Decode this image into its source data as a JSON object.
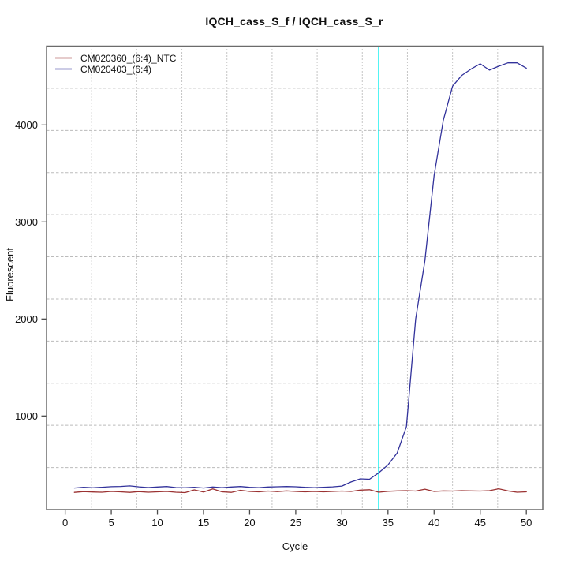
{
  "chart_data": {
    "type": "line",
    "title": "IQCH_cass_S_f / IQCH_cass_S_r",
    "xlabel": "Cycle",
    "ylabel": "Fluorescent",
    "x_range": [
      -2.02,
      51.78
    ],
    "y_range": [
      35,
      4812
    ],
    "xticks": [
      0,
      5,
      10,
      15,
      20,
      25,
      30,
      35,
      40,
      45,
      50
    ],
    "yticks": [
      1000,
      2000,
      3000,
      4000
    ],
    "grid": {
      "nx": 11,
      "ny": 11,
      "vertical_style": "dotted",
      "horizontal_style": "dashed"
    },
    "legend_position": "top-left",
    "threshold_line": {
      "x": 34,
      "color": "#00EEEE"
    },
    "x": [
      1,
      2,
      3,
      4,
      5,
      6,
      7,
      8,
      9,
      10,
      11,
      12,
      13,
      14,
      15,
      16,
      17,
      18,
      19,
      20,
      21,
      22,
      23,
      24,
      25,
      26,
      27,
      28,
      29,
      30,
      31,
      32,
      33,
      34,
      35,
      36,
      37,
      38,
      39,
      40,
      41,
      42,
      43,
      44,
      45,
      46,
      47,
      48,
      49,
      50
    ],
    "series": [
      {
        "name": "CM020360_(6:4)_NTC",
        "color": "#9B3232",
        "values": [
          212,
          220,
          216,
          214,
          222,
          218,
          212,
          220,
          214,
          218,
          222,
          214,
          210,
          238,
          216,
          248,
          218,
          212,
          234,
          222,
          218,
          226,
          220,
          228,
          222,
          218,
          222,
          218,
          222,
          226,
          222,
          236,
          240,
          214,
          224,
          228,
          230,
          226,
          246,
          222,
          228,
          226,
          230,
          228,
          226,
          230,
          250,
          228,
          214,
          218
        ]
      },
      {
        "name": "CM020403_(6:4)",
        "color": "#32329B",
        "values": [
          258,
          265,
          260,
          266,
          272,
          274,
          280,
          270,
          263,
          268,
          273,
          263,
          260,
          266,
          258,
          268,
          262,
          268,
          273,
          265,
          262,
          268,
          271,
          273,
          271,
          265,
          262,
          266,
          270,
          278,
          320,
          352,
          348,
          415,
          495,
          620,
          890,
          2000,
          2600,
          3480,
          4050,
          4400,
          4510,
          4575,
          4630,
          4565,
          4605,
          4640,
          4640,
          4585
        ]
      }
    ]
  }
}
